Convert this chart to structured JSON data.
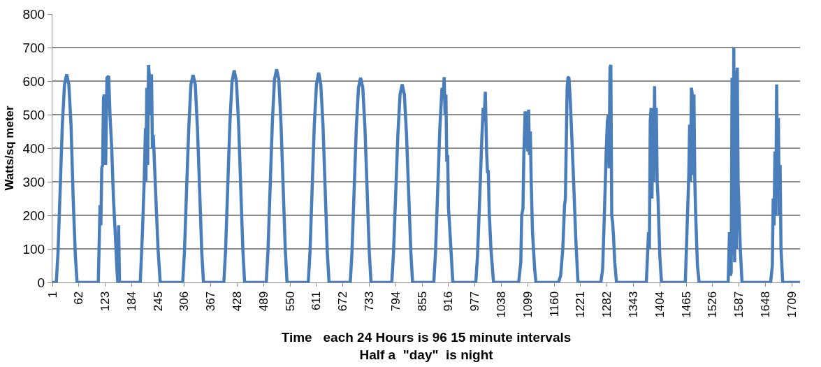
{
  "chart_data": {
    "type": "line",
    "xlabel": "Time   each 24 Hours is 96 15 minute intervals\nHalf a  \"day\"  is night",
    "ylabel": "Watts/sq meter",
    "series": [
      {
        "color": "#4a7ebb",
        "x": [
          1,
          10,
          14,
          19,
          24,
          29,
          34,
          39,
          44,
          49,
          54,
          58,
          107,
          111,
          113,
          115,
          117,
          119,
          121,
          124,
          127,
          131,
          134,
          138,
          142,
          146,
          150,
          152,
          154,
          156,
          204,
          209,
          213,
          216,
          217,
          219,
          221,
          223,
          226,
          228,
          230,
          232,
          234,
          236,
          240,
          245,
          250,
          302,
          306,
          311,
          316,
          321,
          326,
          331,
          336,
          341,
          346,
          350,
          397,
          401,
          406,
          411,
          416,
          421,
          426,
          431,
          436,
          441,
          445,
          495,
          499,
          504,
          509,
          514,
          519,
          524,
          529,
          534,
          539,
          543,
          592,
          596,
          601,
          606,
          611,
          616,
          621,
          626,
          631,
          636,
          640,
          689,
          693,
          698,
          703,
          708,
          713,
          718,
          723,
          728,
          733,
          737,
          785,
          789,
          794,
          799,
          804,
          809,
          814,
          819,
          824,
          829,
          833,
          882,
          886,
          891,
          896,
          901,
          904,
          906,
          908,
          910,
          912,
          914,
          916,
          918,
          922,
          926,
          979,
          983,
          988,
          993,
          996,
          998,
          1001,
          1004,
          1006,
          1008,
          1010,
          1014,
          1020,
          1078,
          1083,
          1085,
          1088,
          1090,
          1093,
          1095,
          1097,
          1099,
          1101,
          1103,
          1105,
          1107,
          1110,
          1115,
          1118,
          1170,
          1175,
          1180,
          1184,
          1186,
          1190,
          1192,
          1194,
          1197,
          1200,
          1205,
          1210,
          1215,
          1268,
          1272,
          1276,
          1280,
          1283,
          1285,
          1287,
          1289,
          1291,
          1293,
          1295,
          1297,
          1300,
          1304,
          1373,
          1378,
          1380,
          1382,
          1384,
          1386,
          1388,
          1390,
          1392,
          1394,
          1396,
          1398,
          1400,
          1404,
          1408,
          1463,
          1468,
          1471,
          1473,
          1475,
          1477,
          1479,
          1481,
          1483,
          1485,
          1487,
          1491,
          1495,
          1558,
          1562,
          1565,
          1567,
          1569,
          1571,
          1573,
          1575,
          1577,
          1579,
          1581,
          1583,
          1585,
          1590,
          1594,
          1660,
          1664,
          1666,
          1668,
          1670,
          1672,
          1674,
          1676,
          1678,
          1680,
          1682,
          1684,
          1688,
          1728
        ],
        "values": [
          0,
          0,
          90,
          280,
          470,
          590,
          620,
          590,
          470,
          250,
          80,
          0,
          0,
          230,
          170,
          340,
          350,
          550,
          560,
          350,
          610,
          615,
          500,
          400,
          250,
          150,
          40,
          0,
          170,
          0,
          0,
          150,
          300,
          460,
          300,
          580,
          350,
          648,
          600,
          500,
          620,
          400,
          440,
          380,
          250,
          100,
          0,
          0,
          90,
          280,
          460,
          590,
          618,
          590,
          460,
          280,
          90,
          0,
          0,
          95,
          285,
          475,
          600,
          632,
          600,
          475,
          285,
          95,
          0,
          0,
          95,
          285,
          475,
          605,
          635,
          605,
          475,
          285,
          95,
          0,
          0,
          90,
          280,
          470,
          590,
          625,
          590,
          470,
          280,
          90,
          0,
          0,
          90,
          275,
          460,
          580,
          610,
          580,
          460,
          275,
          90,
          0,
          0,
          90,
          265,
          440,
          560,
          590,
          560,
          440,
          265,
          90,
          0,
          0,
          90,
          275,
          460,
          580,
          560,
          612,
          500,
          560,
          360,
          380,
          220,
          180,
          90,
          0,
          0,
          80,
          250,
          430,
          520,
          480,
          568,
          390,
          330,
          330,
          210,
          100,
          0,
          0,
          60,
          200,
          220,
          380,
          510,
          400,
          510,
          390,
          515,
          380,
          450,
          300,
          150,
          40,
          0,
          0,
          20,
          100,
          230,
          250,
          580,
          610,
          612,
          550,
          460,
          300,
          130,
          0,
          0,
          40,
          200,
          380,
          480,
          500,
          340,
          640,
          648,
          200,
          180,
          140,
          60,
          0,
          0,
          150,
          100,
          480,
          520,
          250,
          520,
          300,
          585,
          350,
          520,
          300,
          250,
          80,
          0,
          0,
          200,
          320,
          470,
          300,
          580,
          560,
          320,
          560,
          300,
          200,
          50,
          0,
          0,
          0,
          150,
          20,
          30,
          610,
          80,
          700,
          60,
          630,
          100,
          640,
          300,
          100,
          0,
          0,
          50,
          250,
          170,
          390,
          200,
          590,
          300,
          490,
          200,
          350,
          100,
          0,
          0
        ]
      }
    ],
    "xlim": [
      1,
      1728
    ],
    "xticks": [
      1,
      62,
      123,
      184,
      245,
      306,
      367,
      428,
      489,
      550,
      611,
      672,
      733,
      794,
      855,
      916,
      977,
      1038,
      1099,
      1160,
      1221,
      1282,
      1343,
      1404,
      1465,
      1526,
      1587,
      1648,
      1709
    ],
    "ylim": [
      0,
      800
    ],
    "yticks": [
      0,
      100,
      200,
      300,
      400,
      500,
      600,
      700,
      800
    ],
    "grid": "y",
    "marker": "none",
    "line_style": "solid"
  }
}
